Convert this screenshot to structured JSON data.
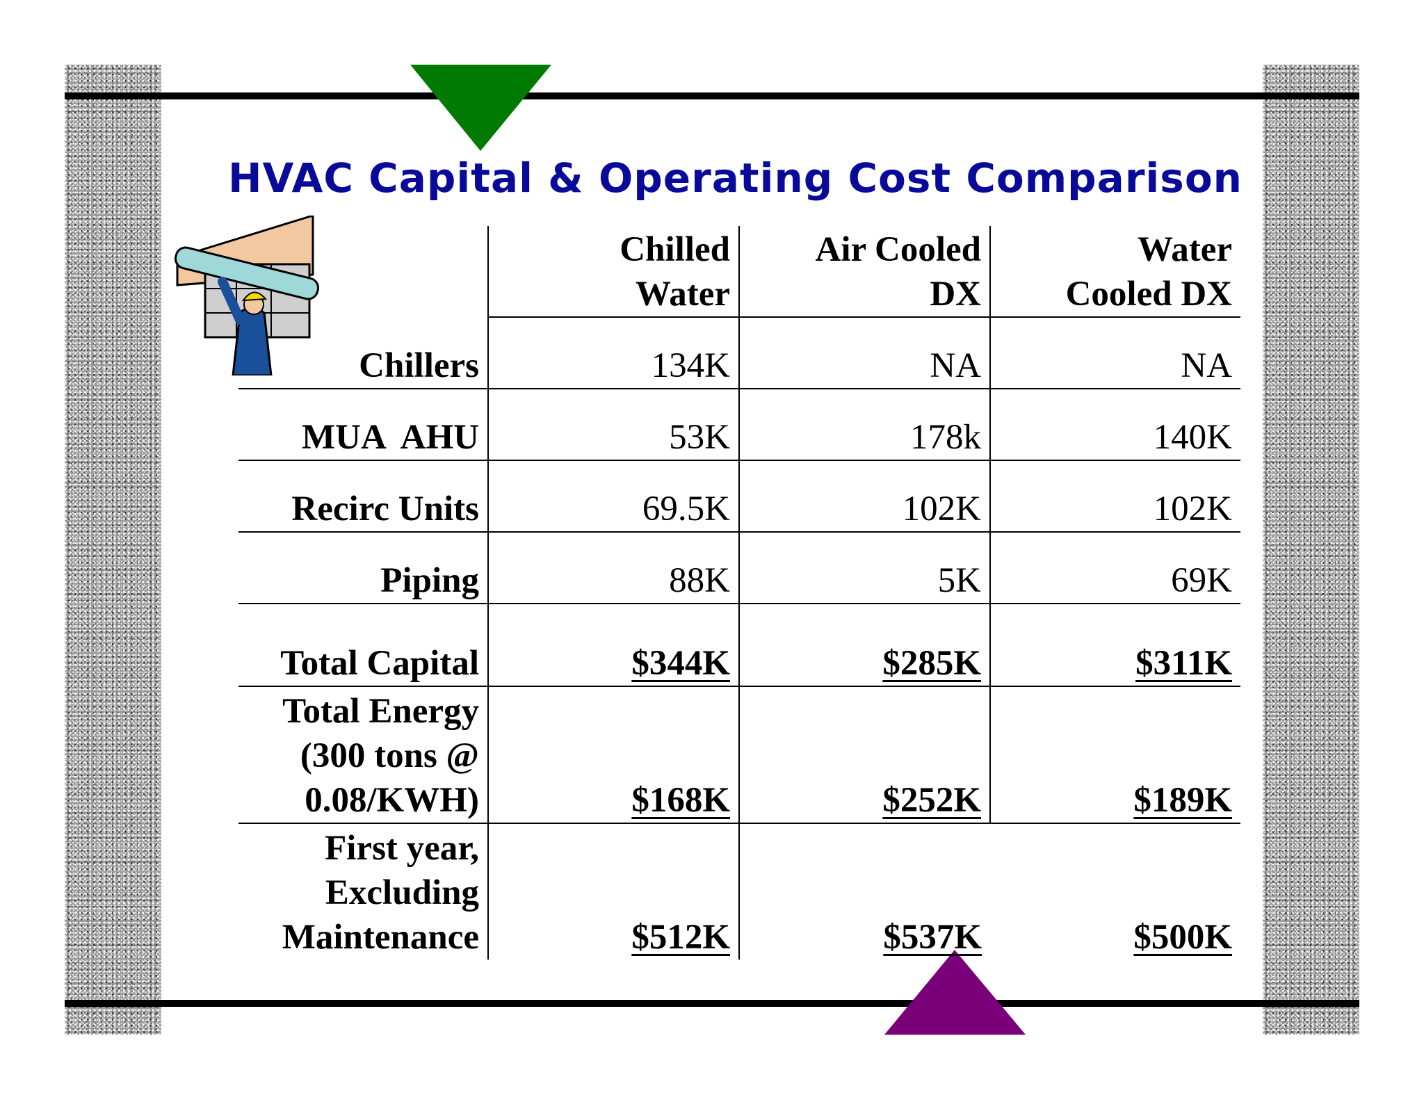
{
  "slide": {
    "title": "HVAC Capital & Operating Cost Comparison",
    "accent_top": "#007a00",
    "accent_bottom": "#7a007a",
    "title_color": "#0a0a9a"
  },
  "table": {
    "headers": {
      "col1_line1": "Chilled",
      "col1_line2": "Water",
      "col2_line1": "Air Cooled",
      "col2_line2": "DX",
      "col3_line1": "Water",
      "col3_line2": "Cooled DX"
    },
    "rows": [
      {
        "label": "Chillers",
        "c1": "134K",
        "c2": "NA",
        "c3": "NA"
      },
      {
        "label": "MUA  AHU",
        "c1": "53K",
        "c2": "178k",
        "c3": "140K"
      },
      {
        "label": "Recirc Units",
        "c1": "69.5K",
        "c2": "102K",
        "c3": "102K"
      },
      {
        "label": "Piping",
        "c1": "88K",
        "c2": "5K",
        "c3": "69K"
      },
      {
        "label": "Total Capital",
        "c1": "$344K",
        "c2": "$285K",
        "c3": "$311K"
      }
    ],
    "energy": {
      "label_line1": "Total Energy",
      "label_line2": "(300 tons @",
      "label_line3": "0.08/KWH)",
      "c1": "$168K",
      "c2": "$252K",
      "c3": "$189K"
    },
    "first_year": {
      "label_line1": "First year,",
      "label_line2": "Excluding",
      "label_line3": "Maintenance",
      "c1": "$512K",
      "c2": "$537K",
      "c3": "$500K"
    }
  }
}
